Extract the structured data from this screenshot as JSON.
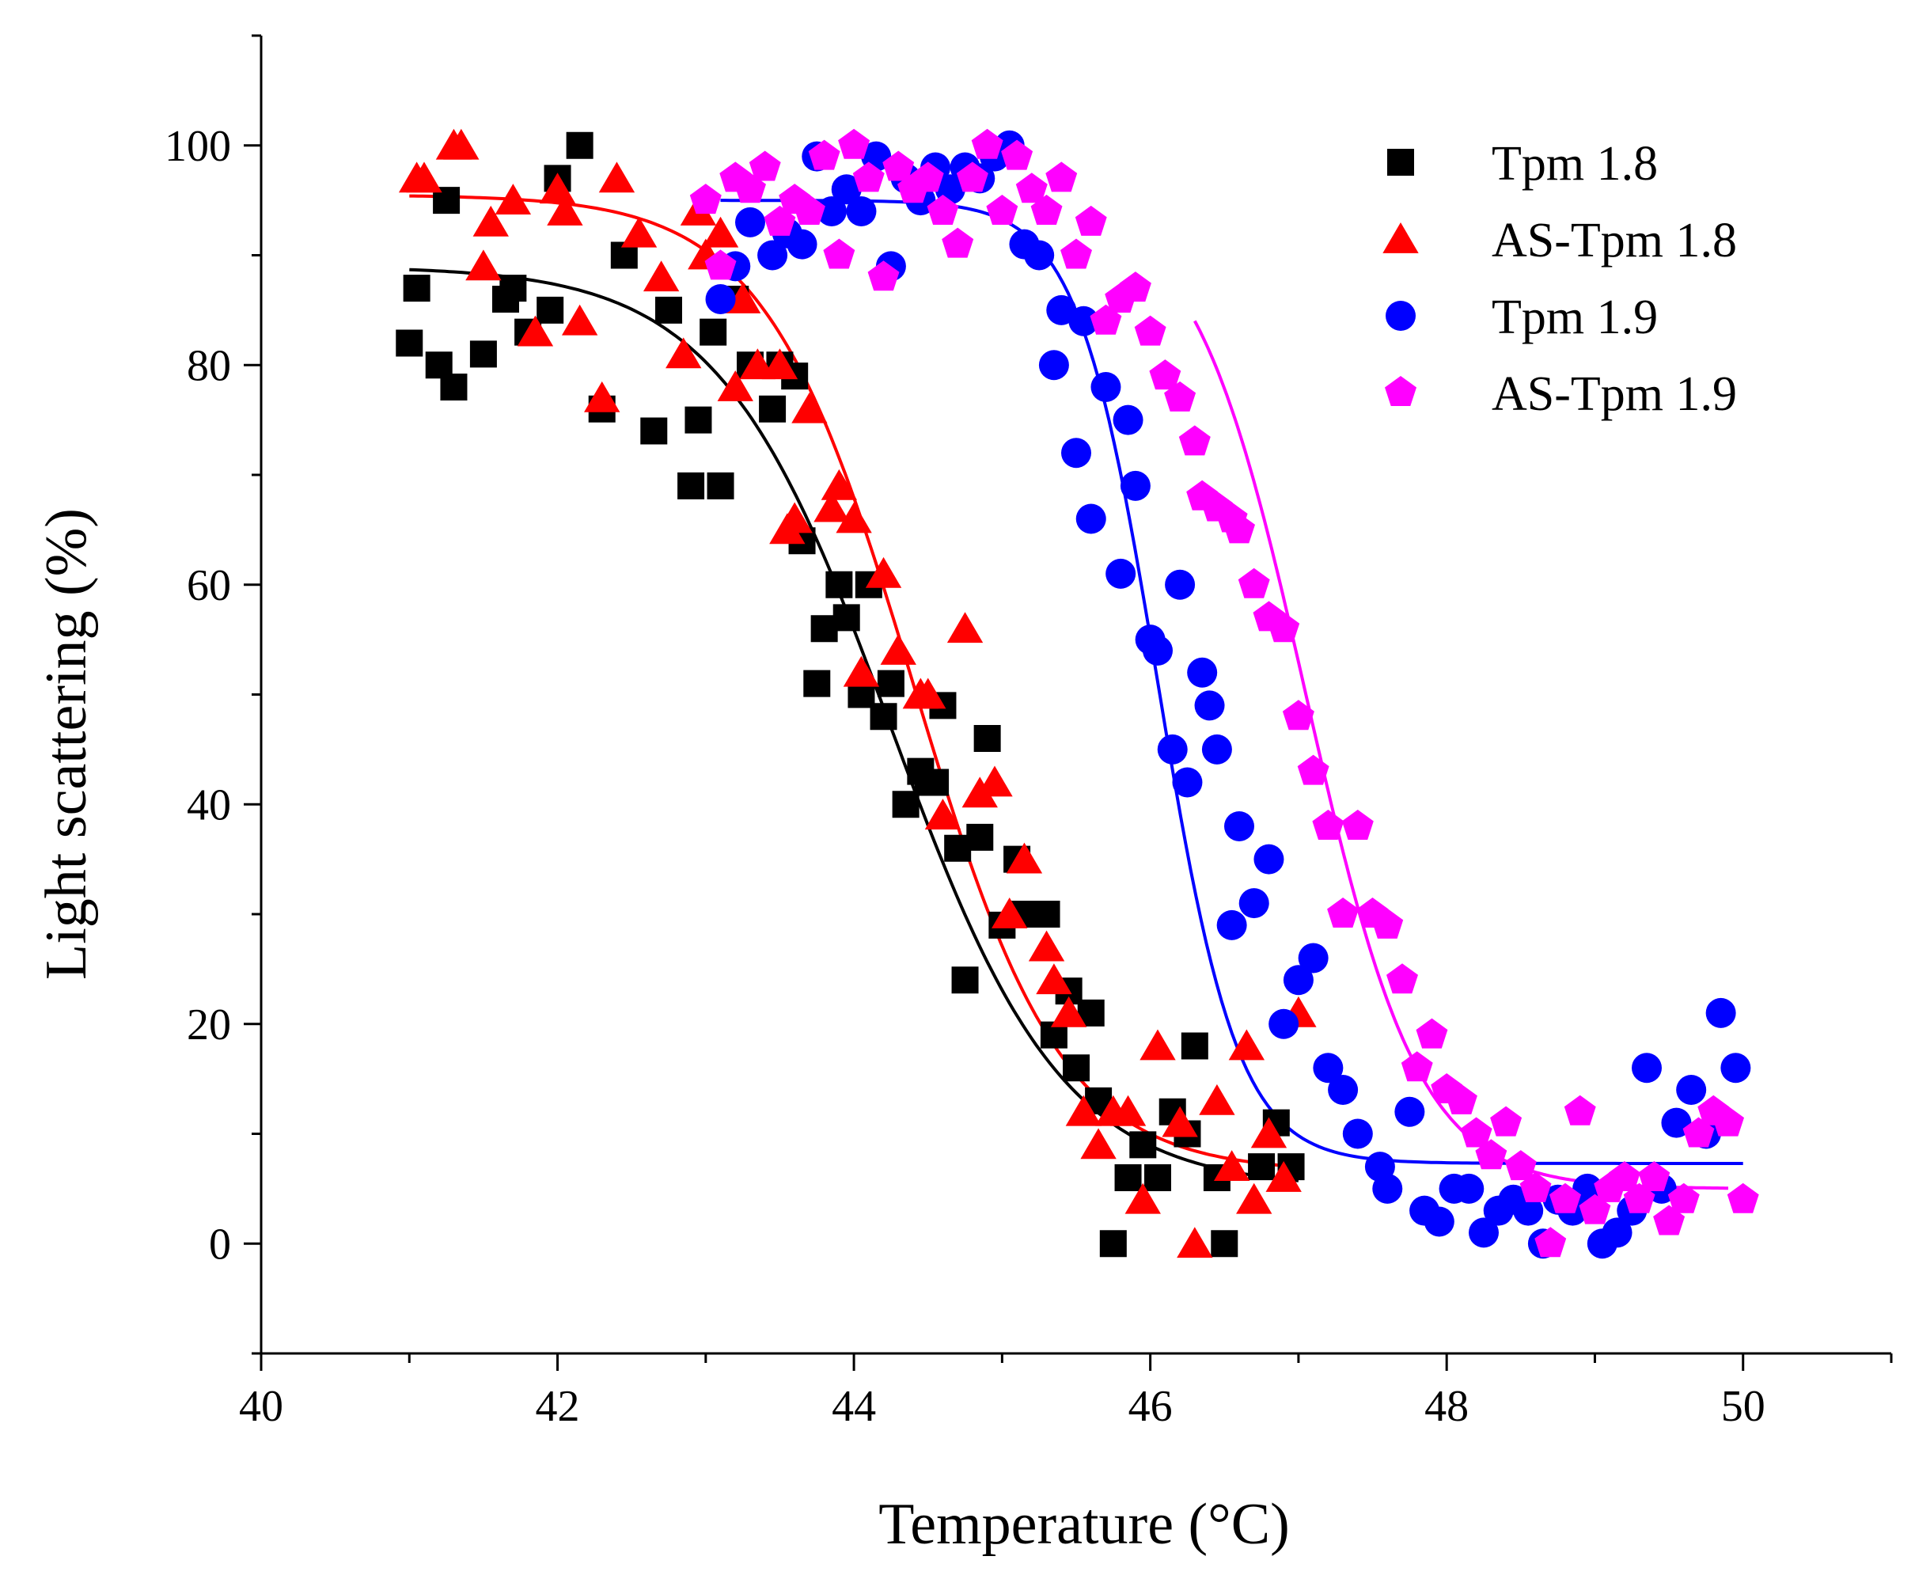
{
  "chart_data": {
    "type": "scatter",
    "title": "",
    "xlabel": "Temperature (°C)",
    "ylabel": "Light scattering (%)",
    "xlim": [
      40,
      51
    ],
    "ylim": [
      -10,
      110
    ],
    "x_ticks": [
      40,
      42,
      44,
      46,
      48,
      50
    ],
    "y_ticks": [
      0,
      20,
      40,
      60,
      80,
      100
    ],
    "grid": false,
    "legend_position": "top-right",
    "series": [
      {
        "name": "Tpm 1.8",
        "color": "#000000",
        "marker": "square",
        "x": [
          41.0,
          41.05,
          41.2,
          41.25,
          41.3,
          41.5,
          41.65,
          41.7,
          41.8,
          41.95,
          42.0,
          42.15,
          42.3,
          42.45,
          42.65,
          42.75,
          42.9,
          42.95,
          43.05,
          43.1,
          43.2,
          43.3,
          43.45,
          43.5,
          43.6,
          43.65,
          43.75,
          43.8,
          43.9,
          43.95,
          44.05,
          44.1,
          44.2,
          44.25,
          44.35,
          44.45,
          44.5,
          44.55,
          44.6,
          44.7,
          44.75,
          44.85,
          44.9,
          45.0,
          45.1,
          45.15,
          45.3,
          45.35,
          45.45,
          45.5,
          45.6,
          45.65,
          45.75,
          45.85,
          45.95,
          46.05,
          46.15,
          46.25,
          46.3,
          46.45,
          46.5,
          46.75,
          46.85,
          46.95
        ],
        "y": [
          82,
          87,
          80,
          95,
          78,
          81,
          86,
          87,
          83,
          85,
          97,
          100,
          76,
          90,
          74,
          85,
          69,
          75,
          83,
          69,
          86,
          80,
          76,
          80,
          79,
          64,
          51,
          56,
          60,
          57,
          50,
          60,
          48,
          51,
          40,
          43,
          42,
          42,
          49,
          36,
          24,
          37,
          46,
          29,
          35,
          30,
          30,
          19,
          23,
          16,
          21,
          13,
          0,
          6,
          9,
          6,
          12,
          10,
          18,
          6,
          0,
          7,
          11,
          7
        ]
      },
      {
        "name": "AS-Tpm 1.8",
        "color": "#ff0000",
        "marker": "triangle",
        "x": [
          41.05,
          41.1,
          41.3,
          41.35,
          41.5,
          41.55,
          41.7,
          41.85,
          42.0,
          42.05,
          42.15,
          42.3,
          42.4,
          42.55,
          42.7,
          42.85,
          42.95,
          43.0,
          43.1,
          43.2,
          43.25,
          43.35,
          43.5,
          43.55,
          43.6,
          43.7,
          43.85,
          43.9,
          44.0,
          44.05,
          44.2,
          44.3,
          44.45,
          44.5,
          44.6,
          44.75,
          44.85,
          44.95,
          45.05,
          45.15,
          45.3,
          45.35,
          45.45,
          45.55,
          45.65,
          45.75,
          45.85,
          45.95,
          46.05,
          46.2,
          46.3,
          46.45,
          46.55,
          46.65,
          46.7,
          46.8,
          46.9,
          47.0
        ],
        "y": [
          97,
          97,
          100,
          100,
          89,
          93,
          95,
          83,
          96,
          94,
          84,
          77,
          97,
          92,
          88,
          81,
          94,
          90,
          92,
          78,
          86,
          80,
          80,
          65,
          66,
          76,
          67,
          69,
          66,
          52,
          61,
          54,
          50,
          50,
          39,
          56,
          41,
          42,
          30,
          35,
          27,
          24,
          21,
          12,
          9,
          12,
          12,
          4,
          18,
          11,
          0,
          13,
          7,
          18,
          4,
          10,
          6,
          21
        ]
      },
      {
        "name": "Tpm 1.9",
        "color": "#0000ff",
        "marker": "circle",
        "x": [
          43.1,
          43.2,
          43.3,
          43.45,
          43.55,
          43.65,
          43.75,
          43.85,
          43.95,
          44.05,
          44.15,
          44.25,
          44.35,
          44.45,
          44.55,
          44.65,
          44.75,
          44.85,
          44.95,
          45.05,
          45.15,
          45.25,
          45.35,
          45.4,
          45.5,
          45.55,
          45.6,
          45.7,
          45.8,
          45.85,
          45.9,
          46.0,
          46.05,
          46.15,
          46.2,
          46.25,
          46.35,
          46.4,
          46.45,
          46.55,
          46.6,
          46.7,
          46.8,
          46.9,
          47.0,
          47.1,
          47.2,
          47.3,
          47.4,
          47.55,
          47.6,
          47.75,
          47.85,
          47.95,
          48.05,
          48.15,
          48.25,
          48.35,
          48.45,
          48.55,
          48.65,
          48.75,
          48.85,
          48.95,
          49.05,
          49.15,
          49.25,
          49.35,
          49.45,
          49.55,
          49.65,
          49.75,
          49.85,
          49.95
        ],
        "y": [
          86,
          89,
          93,
          90,
          92,
          91,
          99,
          94,
          96,
          94,
          99,
          89,
          97,
          95,
          98,
          96,
          98,
          97,
          99,
          100,
          91,
          90,
          80,
          85,
          72,
          84,
          66,
          78,
          61,
          75,
          69,
          55,
          54,
          45,
          60,
          42,
          52,
          49,
          45,
          29,
          38,
          31,
          35,
          20,
          24,
          26,
          16,
          14,
          10,
          7,
          5,
          12,
          3,
          2,
          5,
          5,
          1,
          3,
          4,
          3,
          0,
          4,
          3,
          5,
          0,
          1,
          3,
          16,
          5,
          11,
          14,
          10,
          21,
          16
        ]
      },
      {
        "name": "AS-Tpm 1.9",
        "color": "#ff00ff",
        "marker": "pentagon",
        "x": [
          43.0,
          43.1,
          43.2,
          43.3,
          43.4,
          43.5,
          43.6,
          43.7,
          43.8,
          43.9,
          44.0,
          44.1,
          44.2,
          44.3,
          44.4,
          44.5,
          44.6,
          44.7,
          44.8,
          44.9,
          45.0,
          45.1,
          45.2,
          45.3,
          45.4,
          45.5,
          45.6,
          45.7,
          45.8,
          45.9,
          46.0,
          46.1,
          46.2,
          46.3,
          46.35,
          46.45,
          46.55,
          46.6,
          46.7,
          46.8,
          46.9,
          47.0,
          47.1,
          47.2,
          47.3,
          47.4,
          47.5,
          47.6,
          47.7,
          47.8,
          47.9,
          48.0,
          48.1,
          48.2,
          48.3,
          48.4,
          48.5,
          48.6,
          48.7,
          48.8,
          48.9,
          49.0,
          49.1,
          49.2,
          49.3,
          49.4,
          49.5,
          49.6,
          49.7,
          49.8,
          49.9,
          50.0
        ],
        "y": [
          95,
          89,
          97,
          96,
          98,
          93,
          95,
          94,
          99,
          90,
          100,
          97,
          88,
          98,
          96,
          97,
          94,
          91,
          97,
          100,
          94,
          99,
          96,
          94,
          97,
          90,
          93,
          84,
          86,
          87,
          83,
          79,
          77,
          73,
          68,
          67,
          66,
          65,
          60,
          57,
          56,
          48,
          43,
          38,
          30,
          38,
          30,
          29,
          24,
          16,
          19,
          14,
          13,
          10,
          8,
          11,
          7,
          5,
          0,
          4,
          12,
          3,
          5,
          6,
          4,
          6,
          2,
          4,
          10,
          12,
          11,
          4
        ]
      }
    ],
    "fit_curves": [
      {
        "series": "Tpm 1.8",
        "color": "#000000",
        "type": "sigmoid",
        "x_range": [
          41.0,
          47.0
        ],
        "top": 89.0,
        "bottom": 5.0,
        "midpoint": 44.25,
        "slope": 0.58
      },
      {
        "series": "AS-Tpm 1.8",
        "color": "#ff0000",
        "type": "sigmoid",
        "x_range": [
          41.0,
          47.0
        ],
        "top": 95.5,
        "bottom": 6.5,
        "midpoint": 44.4,
        "slope": 0.5
      },
      {
        "series": "Tpm 1.9",
        "color": "#0000ff",
        "type": "sigmoid",
        "x_range": [
          43.1,
          50.0
        ],
        "top": 95.0,
        "bottom": 7.3,
        "midpoint": 46.05,
        "slope": 0.27
      },
      {
        "series": "AS-Tpm 1.9",
        "color": "#ff00ff",
        "type": "sigmoid",
        "x_range": [
          46.3,
          49.9
        ],
        "top": 95.0,
        "bottom": 5.0,
        "midpoint": 47.05,
        "slope": 0.38
      }
    ]
  }
}
